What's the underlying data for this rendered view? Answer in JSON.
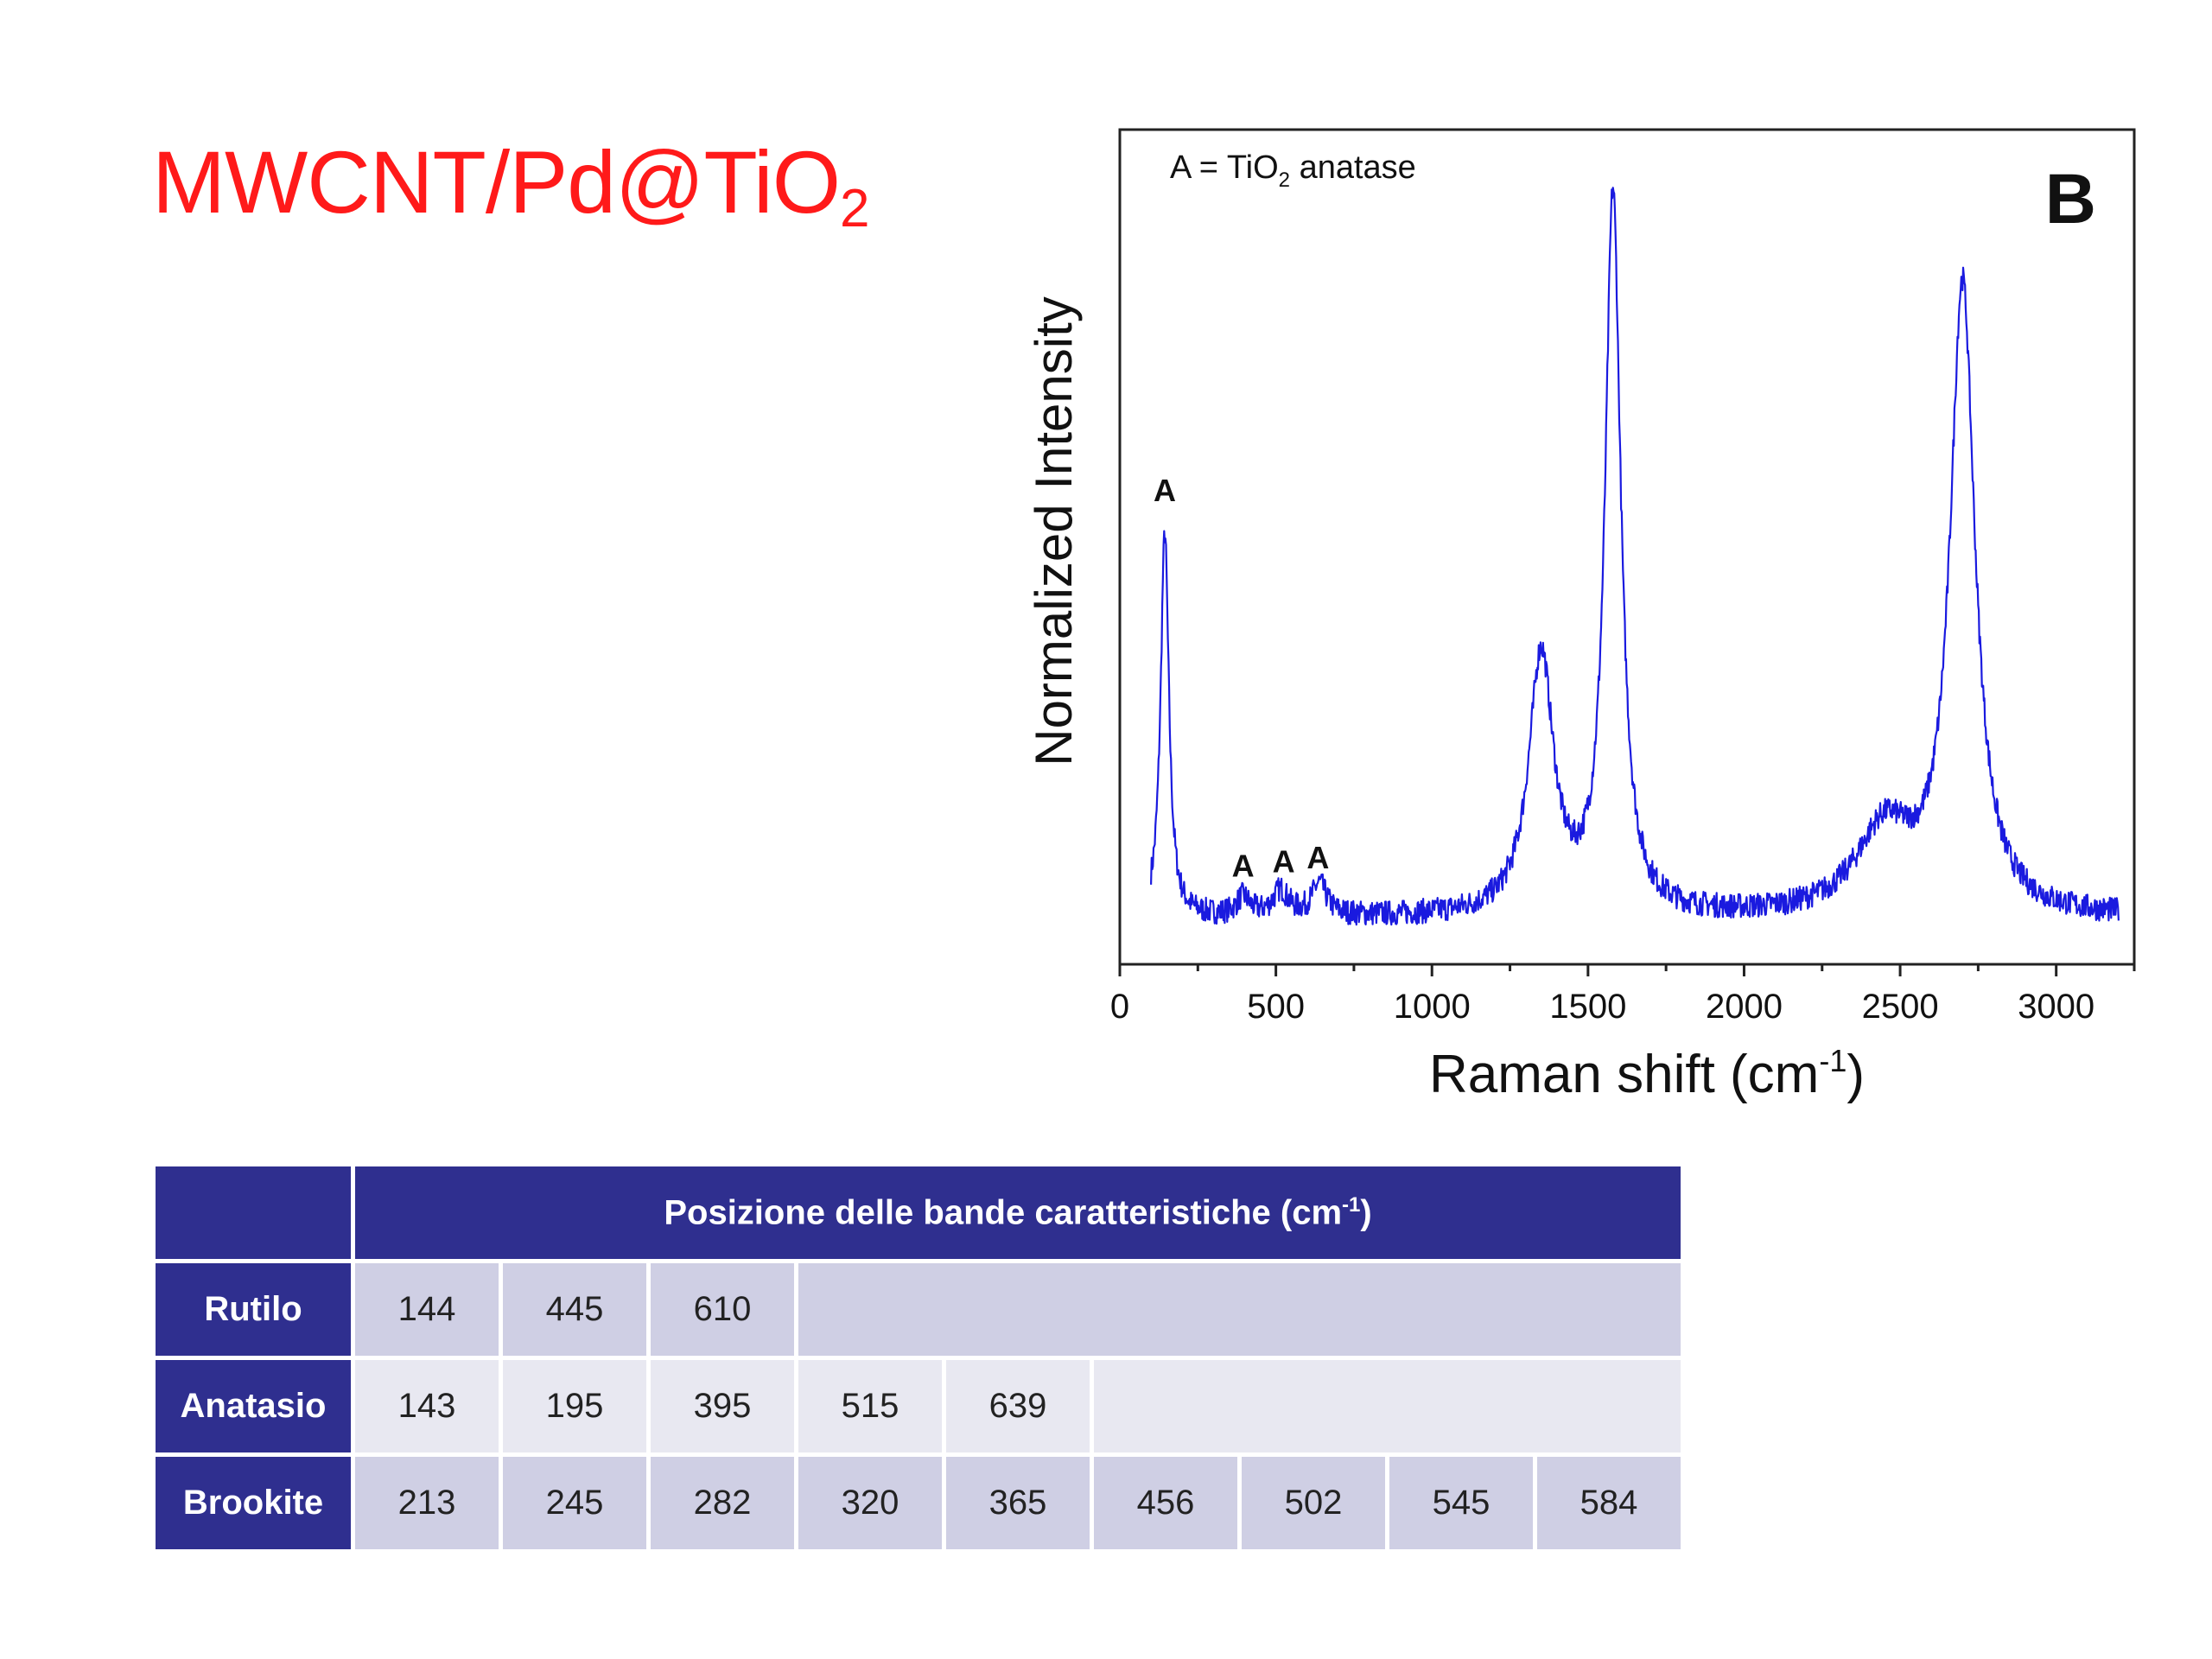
{
  "slide": {
    "title_main": "MWCNT/Pd@TiO",
    "title_sub": "2"
  },
  "chart_data": {
    "type": "line",
    "panel_label": "B",
    "legend_text_pre": "A = TiO",
    "legend_text_sub": "2",
    "legend_text_post": " anatase",
    "xlabel_pre": "Raman shift (cm",
    "xlabel_sup": "-1",
    "xlabel_post": ")",
    "ylabel": "Normalized Intensity",
    "xlim": [
      0,
      3250
    ],
    "ylim": [
      0,
      1.0
    ],
    "x_ticks": [
      0,
      500,
      1000,
      1500,
      2000,
      2500,
      3000
    ],
    "x_minor_step": 250,
    "grid": false,
    "line_color": "#1a1adf",
    "baseline": 0.055,
    "peaks": [
      {
        "x": 144,
        "height": 0.46,
        "width": 16
      },
      {
        "x": 395,
        "height": 0.022,
        "width": 25
      },
      {
        "x": 515,
        "height": 0.03,
        "width": 30
      },
      {
        "x": 639,
        "height": 0.038,
        "width": 28
      },
      {
        "x": 1350,
        "height": 0.31,
        "width": 48
      },
      {
        "x": 1580,
        "height": 0.86,
        "width": 30
      },
      {
        "x": 2450,
        "height": 0.1,
        "width": 110
      },
      {
        "x": 2700,
        "height": 0.75,
        "width": 48
      }
    ],
    "annotations": [
      {
        "text": "A",
        "x": 144,
        "y": 0.555
      },
      {
        "text": "A",
        "x": 395,
        "y": 0.105
      },
      {
        "text": "A",
        "x": 525,
        "y": 0.11
      },
      {
        "text": "A",
        "x": 635,
        "y": 0.115
      }
    ]
  },
  "table": {
    "header_pre": "Posizione delle bande caratteristiche (cm",
    "header_sup": "-1",
    "header_post": ")",
    "rows": [
      {
        "name": "Rutilo",
        "values": [
          "144",
          "445",
          "610"
        ]
      },
      {
        "name": "Anatasio",
        "values": [
          "143",
          "195",
          "395",
          "515",
          "639"
        ]
      },
      {
        "name": "Brookite",
        "values": [
          "213",
          "245",
          "282",
          "320",
          "365",
          "456",
          "502",
          "545",
          "584"
        ]
      }
    ]
  }
}
